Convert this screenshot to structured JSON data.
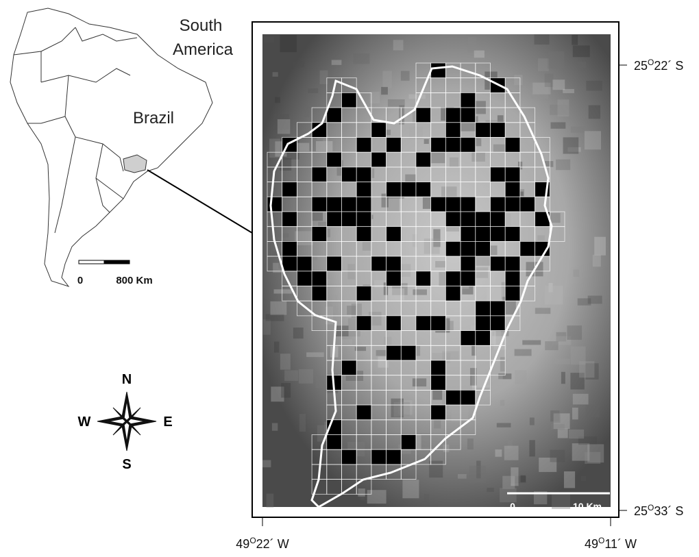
{
  "inset_map": {
    "continent_label": [
      "South",
      "America"
    ],
    "country_label": "Brazil",
    "scale_bar": {
      "start": "0",
      "end": "800 Km"
    }
  },
  "compass": {
    "north": "N",
    "west": "W",
    "east": "E",
    "south": "S"
  },
  "main_map": {
    "scale_bar": {
      "start": "0",
      "end": "10 Km"
    },
    "latitude_labels": [
      {
        "deg": "25",
        "sup": "O",
        "min": "22´ S"
      },
      {
        "deg": "25",
        "sup": "O",
        "min": "33´ S"
      }
    ],
    "longitude_labels": [
      {
        "deg": "49",
        "sup": "O",
        "min": "22´ W"
      },
      {
        "deg": "49",
        "sup": "O",
        "min": "11´ W"
      }
    ]
  }
}
